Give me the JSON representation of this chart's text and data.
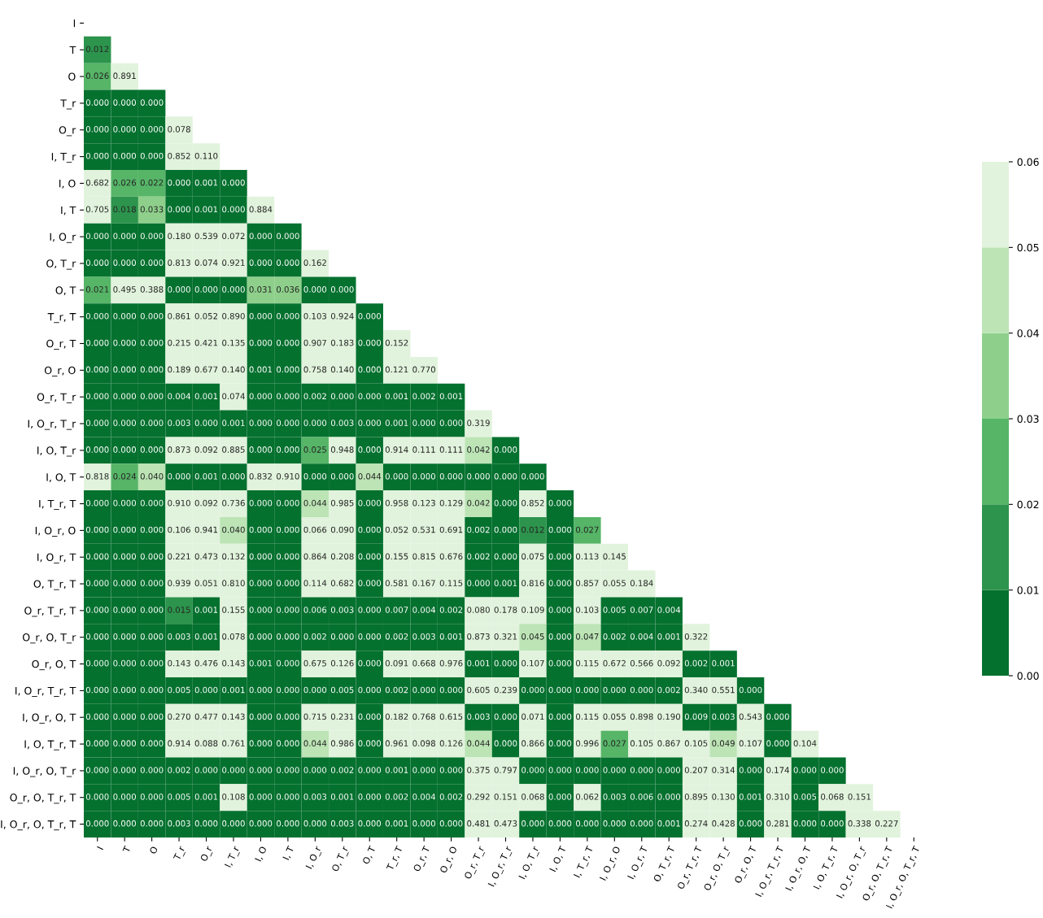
{
  "chart_data": {
    "type": "heatmap",
    "categories": [
      "I",
      "T",
      "O",
      "T_r",
      "O_r",
      "I, T_r",
      "I, O",
      "I, T",
      "I, O_r",
      "O, T_r",
      "O, T",
      "T_r, T",
      "O_r, T",
      "O_r, O",
      "O_r, T_r",
      "I, O_r, T_r",
      "I, O, T_r",
      "I, O, T",
      "I, T_r, T",
      "I, O_r, O",
      "I, O_r, T",
      "O, T_r, T",
      "O_r, T_r, T",
      "O_r, O, T_r",
      "O_r, O, T",
      "I, O_r, T_r, T",
      "I, O_r, O, T",
      "I, O, T_r, T",
      "I, O_r, O, T_r",
      "O_r, O, T_r, T",
      "I, O_r, O, T_r, T"
    ],
    "y_categories": [
      "I",
      "T",
      "O",
      "T_r",
      "O_r",
      "I, T_r",
      "I, O",
      "I, T",
      "I, O_r",
      "O, T_r",
      "O, T",
      "T_r, T",
      "O_r, T",
      "O_r, O",
      "O_r, T_r",
      "I, O_r, T_r",
      "I, O, T_r",
      "I, O, T",
      "I, T_r, T",
      "I, O_r, O",
      "I, O_r, T",
      "O, T_r, T",
      "O_r, T_r, T",
      "O_r, O, T_r",
      "O_r, O, T",
      "I, O_r, T_r, T",
      "I, O_r, O, T",
      "I, O, T_r, T",
      "I, O_r, O, T_r",
      "O_r, O, T_r, T",
      "I, O_r, O, T_r, T"
    ],
    "cells": [
      [
        null,
        null,
        null,
        null,
        null,
        null,
        null,
        null,
        null,
        null,
        null,
        null,
        null,
        null,
        null,
        null,
        null,
        null,
        null,
        null,
        null,
        null,
        null,
        null,
        null,
        null,
        null,
        null,
        null,
        null,
        null
      ],
      [
        0.012,
        null,
        null,
        null,
        null,
        null,
        null,
        null,
        null,
        null,
        null,
        null,
        null,
        null,
        null,
        null,
        null,
        null,
        null,
        null,
        null,
        null,
        null,
        null,
        null,
        null,
        null,
        null,
        null,
        null,
        null
      ],
      [
        0.026,
        0.891,
        null,
        null,
        null,
        null,
        null,
        null,
        null,
        null,
        null,
        null,
        null,
        null,
        null,
        null,
        null,
        null,
        null,
        null,
        null,
        null,
        null,
        null,
        null,
        null,
        null,
        null,
        null,
        null,
        null
      ],
      [
        0.0,
        0.0,
        0.0,
        null,
        null,
        null,
        null,
        null,
        null,
        null,
        null,
        null,
        null,
        null,
        null,
        null,
        null,
        null,
        null,
        null,
        null,
        null,
        null,
        null,
        null,
        null,
        null,
        null,
        null,
        null,
        null
      ],
      [
        0.0,
        0.0,
        0.0,
        0.078,
        null,
        null,
        null,
        null,
        null,
        null,
        null,
        null,
        null,
        null,
        null,
        null,
        null,
        null,
        null,
        null,
        null,
        null,
        null,
        null,
        null,
        null,
        null,
        null,
        null,
        null,
        null
      ],
      [
        0.0,
        0.0,
        0.0,
        0.852,
        0.11,
        null,
        null,
        null,
        null,
        null,
        null,
        null,
        null,
        null,
        null,
        null,
        null,
        null,
        null,
        null,
        null,
        null,
        null,
        null,
        null,
        null,
        null,
        null,
        null,
        null,
        null
      ],
      [
        0.682,
        0.026,
        0.022,
        0.0,
        0.001,
        0.0,
        null,
        null,
        null,
        null,
        null,
        null,
        null,
        null,
        null,
        null,
        null,
        null,
        null,
        null,
        null,
        null,
        null,
        null,
        null,
        null,
        null,
        null,
        null,
        null,
        null
      ],
      [
        0.705,
        0.018,
        0.033,
        0.0,
        0.001,
        0.0,
        0.884,
        null,
        null,
        null,
        null,
        null,
        null,
        null,
        null,
        null,
        null,
        null,
        null,
        null,
        null,
        null,
        null,
        null,
        null,
        null,
        null,
        null,
        null,
        null,
        null
      ],
      [
        0.0,
        0.0,
        0.0,
        0.18,
        0.539,
        0.072,
        0.0,
        0.0,
        null,
        null,
        null,
        null,
        null,
        null,
        null,
        null,
        null,
        null,
        null,
        null,
        null,
        null,
        null,
        null,
        null,
        null,
        null,
        null,
        null,
        null,
        null
      ],
      [
        0.0,
        0.0,
        0.0,
        0.813,
        0.074,
        0.921,
        0.0,
        0.0,
        0.162,
        null,
        null,
        null,
        null,
        null,
        null,
        null,
        null,
        null,
        null,
        null,
        null,
        null,
        null,
        null,
        null,
        null,
        null,
        null,
        null,
        null,
        null
      ],
      [
        0.021,
        0.495,
        0.388,
        0.0,
        0.0,
        0.0,
        0.031,
        0.036,
        0.0,
        0.0,
        null,
        null,
        null,
        null,
        null,
        null,
        null,
        null,
        null,
        null,
        null,
        null,
        null,
        null,
        null,
        null,
        null,
        null,
        null,
        null,
        null
      ],
      [
        0.0,
        0.0,
        0.0,
        0.861,
        0.052,
        0.89,
        0.0,
        0.0,
        0.103,
        0.924,
        0.0,
        null,
        null,
        null,
        null,
        null,
        null,
        null,
        null,
        null,
        null,
        null,
        null,
        null,
        null,
        null,
        null,
        null,
        null,
        null,
        null
      ],
      [
        0.0,
        0.0,
        0.0,
        0.215,
        0.421,
        0.135,
        0.0,
        0.0,
        0.907,
        0.183,
        0.0,
        0.152,
        null,
        null,
        null,
        null,
        null,
        null,
        null,
        null,
        null,
        null,
        null,
        null,
        null,
        null,
        null,
        null,
        null,
        null,
        null
      ],
      [
        0.0,
        0.0,
        0.0,
        0.189,
        0.677,
        0.14,
        0.001,
        0.0,
        0.758,
        0.14,
        0.0,
        0.121,
        0.77,
        null,
        null,
        null,
        null,
        null,
        null,
        null,
        null,
        null,
        null,
        null,
        null,
        null,
        null,
        null,
        null,
        null,
        null
      ],
      [
        0.0,
        0.0,
        0.0,
        0.004,
        0.001,
        0.074,
        0.0,
        0.0,
        0.002,
        0.0,
        0.0,
        0.001,
        0.002,
        0.001,
        null,
        null,
        null,
        null,
        null,
        null,
        null,
        null,
        null,
        null,
        null,
        null,
        null,
        null,
        null,
        null,
        null
      ],
      [
        0.0,
        0.0,
        0.0,
        0.003,
        0.0,
        0.001,
        0.0,
        0.0,
        0.0,
        0.003,
        0.0,
        0.001,
        0.0,
        0.0,
        0.319,
        null,
        null,
        null,
        null,
        null,
        null,
        null,
        null,
        null,
        null,
        null,
        null,
        null,
        null,
        null,
        null
      ],
      [
        0.0,
        0.0,
        0.0,
        0.873,
        0.092,
        0.885,
        0.0,
        0.0,
        0.025,
        0.948,
        0.0,
        0.914,
        0.111,
        0.111,
        0.042,
        0.0,
        null,
        null,
        null,
        null,
        null,
        null,
        null,
        null,
        null,
        null,
        null,
        null,
        null,
        null,
        null
      ],
      [
        0.818,
        0.024,
        0.04,
        0.0,
        0.001,
        0.0,
        0.832,
        0.91,
        0.0,
        0.0,
        0.044,
        0.0,
        0.0,
        0.0,
        0.0,
        0.0,
        0.0,
        null,
        null,
        null,
        null,
        null,
        null,
        null,
        null,
        null,
        null,
        null,
        null,
        null,
        null
      ],
      [
        0.0,
        0.0,
        0.0,
        0.91,
        0.092,
        0.736,
        0.0,
        0.0,
        0.044,
        0.985,
        0.0,
        0.958,
        0.123,
        0.129,
        0.042,
        0.0,
        0.852,
        0.0,
        null,
        null,
        null,
        null,
        null,
        null,
        null,
        null,
        null,
        null,
        null,
        null,
        null
      ],
      [
        0.0,
        0.0,
        0.0,
        0.106,
        0.941,
        0.04,
        0.0,
        0.0,
        0.066,
        0.09,
        0.0,
        0.052,
        0.531,
        0.691,
        0.002,
        0.0,
        0.012,
        0.0,
        0.027,
        null,
        null,
        null,
        null,
        null,
        null,
        null,
        null,
        null,
        null,
        null,
        null
      ],
      [
        0.0,
        0.0,
        0.0,
        0.221,
        0.473,
        0.132,
        0.0,
        0.0,
        0.864,
        0.208,
        0.0,
        0.155,
        0.815,
        0.676,
        0.002,
        0.0,
        0.075,
        0.0,
        0.113,
        0.145,
        null,
        null,
        null,
        null,
        null,
        null,
        null,
        null,
        null,
        null,
        null
      ],
      [
        0.0,
        0.0,
        0.0,
        0.939,
        0.051,
        0.81,
        0.0,
        0.0,
        0.114,
        0.682,
        0.0,
        0.581,
        0.167,
        0.115,
        0.0,
        0.001,
        0.816,
        0.0,
        0.857,
        0.055,
        0.184,
        null,
        null,
        null,
        null,
        null,
        null,
        null,
        null,
        null,
        null
      ],
      [
        0.0,
        0.0,
        0.0,
        0.015,
        0.001,
        0.155,
        0.0,
        0.0,
        0.006,
        0.003,
        0.0,
        0.007,
        0.004,
        0.002,
        0.08,
        0.178,
        0.109,
        0.0,
        0.103,
        0.005,
        0.007,
        0.004,
        null,
        null,
        null,
        null,
        null,
        null,
        null,
        null,
        null
      ],
      [
        0.0,
        0.0,
        0.0,
        0.003,
        0.001,
        0.078,
        0.0,
        0.0,
        0.002,
        0.0,
        0.0,
        0.002,
        0.003,
        0.001,
        0.873,
        0.321,
        0.045,
        0.0,
        0.047,
        0.002,
        0.004,
        0.001,
        0.322,
        null,
        null,
        null,
        null,
        null,
        null,
        null,
        null
      ],
      [
        0.0,
        0.0,
        0.0,
        0.143,
        0.476,
        0.143,
        0.001,
        0.0,
        0.675,
        0.126,
        0.0,
        0.091,
        0.668,
        0.976,
        0.001,
        0.0,
        0.107,
        0.0,
        0.115,
        0.672,
        0.566,
        0.092,
        0.002,
        0.001,
        null,
        null,
        null,
        null,
        null,
        null,
        null
      ],
      [
        0.0,
        0.0,
        0.0,
        0.005,
        0.0,
        0.001,
        0.0,
        0.0,
        0.0,
        0.005,
        0.0,
        0.002,
        0.0,
        0.0,
        0.605,
        0.239,
        0.0,
        0.0,
        0.0,
        0.0,
        0.0,
        0.002,
        0.34,
        0.551,
        0.0,
        null,
        null,
        null,
        null,
        null,
        null
      ],
      [
        0.0,
        0.0,
        0.0,
        0.27,
        0.477,
        0.143,
        0.0,
        0.0,
        0.715,
        0.231,
        0.0,
        0.182,
        0.768,
        0.615,
        0.003,
        0.0,
        0.071,
        0.0,
        0.115,
        0.055,
        0.898,
        0.19,
        0.009,
        0.003,
        0.543,
        0.0,
        null,
        null,
        null,
        null,
        null
      ],
      [
        0.0,
        0.0,
        0.0,
        0.914,
        0.088,
        0.761,
        0.0,
        0.0,
        0.044,
        0.986,
        0.0,
        0.961,
        0.098,
        0.126,
        0.044,
        0.0,
        0.866,
        0.0,
        0.996,
        0.027,
        0.105,
        0.867,
        0.105,
        0.049,
        0.107,
        0.0,
        0.104,
        null,
        null,
        null,
        null
      ],
      [
        0.0,
        0.0,
        0.0,
        0.002,
        0.0,
        0.0,
        0.0,
        0.0,
        0.0,
        0.002,
        0.0,
        0.001,
        0.0,
        0.0,
        0.375,
        0.797,
        0.0,
        0.0,
        0.0,
        0.0,
        0.0,
        0.0,
        0.207,
        0.314,
        0.0,
        0.174,
        0.0,
        0.0,
        null,
        null,
        null
      ],
      [
        0.0,
        0.0,
        0.0,
        0.005,
        0.001,
        0.108,
        0.0,
        0.0,
        0.003,
        0.001,
        0.0,
        0.002,
        0.004,
        0.002,
        0.292,
        0.151,
        0.068,
        0.0,
        0.062,
        0.003,
        0.006,
        0.0,
        0.895,
        0.13,
        0.001,
        0.31,
        0.005,
        0.068,
        0.151,
        null,
        null
      ],
      [
        0.0,
        0.0,
        0.0,
        0.003,
        0.0,
        0.0,
        0.0,
        0.0,
        0.0,
        0.003,
        0.0,
        0.001,
        0.0,
        0.0,
        0.481,
        0.473,
        0.0,
        0.0,
        0.0,
        0.0,
        0.0,
        0.001,
        0.274,
        0.428,
        0.0,
        0.281,
        0.0,
        0.0,
        0.338,
        0.227,
        null
      ]
    ],
    "cell_labels": [
      [
        null,
        null,
        null,
        null,
        null,
        null,
        null,
        null,
        null,
        null,
        null,
        null,
        null,
        null,
        null,
        null,
        null,
        null,
        null,
        null,
        null,
        null,
        null,
        null,
        null,
        null,
        null,
        null,
        null,
        null,
        null
      ],
      [
        "0.012",
        null,
        null,
        null,
        null,
        null,
        null,
        null,
        null,
        null,
        null,
        null,
        null,
        null,
        null,
        null,
        null,
        null,
        null,
        null,
        null,
        null,
        null,
        null,
        null,
        null,
        null,
        null,
        null,
        null,
        null
      ],
      [
        "0.026",
        "0.891",
        null,
        null,
        null,
        null,
        null,
        null,
        null,
        null,
        null,
        null,
        null,
        null,
        null,
        null,
        null,
        null,
        null,
        null,
        null,
        null,
        null,
        null,
        null,
        null,
        null,
        null,
        null,
        null,
        null
      ],
      [
        "0.000",
        "0.000",
        "0.000",
        null,
        null,
        null,
        null,
        null,
        null,
        null,
        null,
        null,
        null,
        null,
        null,
        null,
        null,
        null,
        null,
        null,
        null,
        null,
        null,
        null,
        null,
        null,
        null,
        null,
        null,
        null,
        null
      ],
      [
        "0.000",
        "0.000",
        "0.000",
        "0.078",
        null,
        null,
        null,
        null,
        null,
        null,
        null,
        null,
        null,
        null,
        null,
        null,
        null,
        null,
        null,
        null,
        null,
        null,
        null,
        null,
        null,
        null,
        null,
        null,
        null,
        null,
        null
      ],
      [
        "0.000",
        "0.000",
        "0.000",
        "0.852",
        "0.110",
        null,
        null,
        null,
        null,
        null,
        null,
        null,
        null,
        null,
        null,
        null,
        null,
        null,
        null,
        null,
        null,
        null,
        null,
        null,
        null,
        null,
        null,
        null,
        null,
        null,
        null
      ],
      [
        "0.682",
        "0.026",
        "0.022",
        "0.000",
        "0.001",
        "0.000",
        null,
        null,
        null,
        null,
        null,
        null,
        null,
        null,
        null,
        null,
        null,
        null,
        null,
        null,
        null,
        null,
        null,
        null,
        null,
        null,
        null,
        null,
        null,
        null,
        null
      ],
      [
        "0.705",
        "0.018",
        "0.033",
        "0.000",
        "0.001",
        "0.000",
        "0.884",
        null,
        null,
        null,
        null,
        null,
        null,
        null,
        null,
        null,
        null,
        null,
        null,
        null,
        null,
        null,
        null,
        null,
        null,
        null,
        null,
        null,
        null,
        null,
        null
      ],
      [
        "0.000",
        "0.000",
        "0.000",
        "0.180",
        "0.539",
        "0.072",
        "0.000",
        "0.000",
        null,
        null,
        null,
        null,
        null,
        null,
        null,
        null,
        null,
        null,
        null,
        null,
        null,
        null,
        null,
        null,
        null,
        null,
        null,
        null,
        null,
        null,
        null
      ],
      [
        "0.000",
        "0.000",
        "0.000",
        "0.813",
        "0.074",
        "0.921",
        "0.000",
        "0.000",
        "0.162",
        null,
        null,
        null,
        null,
        null,
        null,
        null,
        null,
        null,
        null,
        null,
        null,
        null,
        null,
        null,
        null,
        null,
        null,
        null,
        null,
        null,
        null
      ],
      [
        "0.021",
        "0.495",
        "0.388",
        "0.000",
        "0.000",
        "0.000",
        "0.031",
        "0.036",
        "0.000",
        "0.000",
        null,
        null,
        null,
        null,
        null,
        null,
        null,
        null,
        null,
        null,
        null,
        null,
        null,
        null,
        null,
        null,
        null,
        null,
        null,
        null,
        null
      ],
      [
        "0.000",
        "0.000",
        "0.000",
        "0.861",
        "0.052",
        "0.890",
        "0.000",
        "0.000",
        "0.103",
        "0.924",
        "0.000",
        null,
        null,
        null,
        null,
        null,
        null,
        null,
        null,
        null,
        null,
        null,
        null,
        null,
        null,
        null,
        null,
        null,
        null,
        null,
        null
      ],
      [
        "0.000",
        "0.000",
        "0.000",
        "0.215",
        "0.421",
        "0.135",
        "0.000",
        "0.000",
        "0.907",
        "0.183",
        "0.000",
        "0.152",
        null,
        null,
        null,
        null,
        null,
        null,
        null,
        null,
        null,
        null,
        null,
        null,
        null,
        null,
        null,
        null,
        null,
        null,
        null
      ],
      [
        "0.000",
        "0.000",
        "0.000",
        "0.189",
        "0.677",
        "0.140",
        "0.001",
        "0.000",
        "0.758",
        "0.140",
        "0.000",
        "0.121",
        "0.770",
        null,
        null,
        null,
        null,
        null,
        null,
        null,
        null,
        null,
        null,
        null,
        null,
        null,
        null,
        null,
        null,
        null,
        null
      ],
      [
        "0.000",
        "0.000",
        "0.000",
        "0.004",
        "0.001",
        "0.074",
        "0.000",
        "0.000",
        "0.002",
        "0.000",
        "0.000",
        "0.001",
        "0.002",
        "0.001",
        null,
        null,
        null,
        null,
        null,
        null,
        null,
        null,
        null,
        null,
        null,
        null,
        null,
        null,
        null,
        null,
        null
      ],
      [
        "0.000",
        "0.000",
        "0.000",
        "0.003",
        "0.000",
        "0.001",
        "0.000",
        "0.000",
        "0.000",
        "0.003",
        "0.000",
        "0.001",
        "0.000",
        "0.000",
        "0.319",
        null,
        null,
        null,
        null,
        null,
        null,
        null,
        null,
        null,
        null,
        null,
        null,
        null,
        null,
        null,
        null
      ],
      [
        "0.000",
        "0.000",
        "0.000",
        "0.873",
        "0.092",
        "0.885",
        "0.000",
        "0.000",
        "0.025",
        "0.948",
        "0.000",
        "0.914",
        "0.111",
        "0.111",
        "0.042",
        "0.000",
        null,
        null,
        null,
        null,
        null,
        null,
        null,
        null,
        null,
        null,
        null,
        null,
        null,
        null,
        null
      ],
      [
        "0.818",
        "0.024",
        "0.040",
        "0.000",
        "0.001",
        "0.000",
        "0.832",
        "0.910",
        "0.000",
        "0.000",
        "0.044",
        "0.000",
        "0.000",
        "0.000",
        "0.000",
        "0.000",
        "0.000",
        null,
        null,
        null,
        null,
        null,
        null,
        null,
        null,
        null,
        null,
        null,
        null,
        null,
        null
      ],
      [
        "0.000",
        "0.000",
        "0.000",
        "0.910",
        "0.092",
        "0.736",
        "0.000",
        "0.000",
        "0.044",
        "0.985",
        "0.000",
        "0.958",
        "0.123",
        "0.129",
        "0.042",
        "0.000",
        "0.852",
        "0.000",
        null,
        null,
        null,
        null,
        null,
        null,
        null,
        null,
        null,
        null,
        null,
        null,
        null
      ],
      [
        "0.000",
        "0.000",
        "0.000",
        "0.106",
        "0.941",
        "0.040",
        "0.000",
        "0.000",
        "0.066",
        "0.090",
        "0.000",
        "0.052",
        "0.531",
        "0.691",
        "0.002",
        "0.000",
        "0.012",
        "0.000",
        "0.027",
        null,
        null,
        null,
        null,
        null,
        null,
        null,
        null,
        null,
        null,
        null,
        null
      ],
      [
        "0.000",
        "0.000",
        "0.000",
        "0.221",
        "0.473",
        "0.132",
        "0.000",
        "0.000",
        "0.864",
        "0.208",
        "0.000",
        "0.155",
        "0.815",
        "0.676",
        "0.002",
        "0.000",
        "0.075",
        "0.000",
        "0.113",
        "0.145",
        null,
        null,
        null,
        null,
        null,
        null,
        null,
        null,
        null,
        null,
        null
      ],
      [
        "0.000",
        "0.000",
        "0.000",
        "0.939",
        "0.051",
        "0.810",
        "0.000",
        "0.000",
        "0.114",
        "0.682",
        "0.000",
        "0.581",
        "0.167",
        "0.115",
        "0.000",
        "0.001",
        "0.816",
        "0.000",
        "0.857",
        "0.055",
        "0.184",
        null,
        null,
        null,
        null,
        null,
        null,
        null,
        null,
        null,
        null
      ],
      [
        "0.000",
        "0.000",
        "0.000",
        "0.015",
        "0.001",
        "0.155",
        "0.000",
        "0.000",
        "0.006",
        "0.003",
        "0.000",
        "0.007",
        "0.004",
        "0.002",
        "0.080",
        "0.178",
        "0.109",
        "0.000",
        "0.103",
        "0.005",
        "0.007",
        "0.004",
        null,
        null,
        null,
        null,
        null,
        null,
        null,
        null,
        null
      ],
      [
        "0.000",
        "0.000",
        "0.000",
        "0.003",
        "0.001",
        "0.078",
        "0.000",
        "0.000",
        "0.002",
        "0.000",
        "0.000",
        "0.002",
        "0.003",
        "0.001",
        "0.873",
        "0.321",
        "0.045",
        "0.000",
        "0.047",
        "0.002",
        "0.004",
        "0.001",
        "0.322",
        null,
        null,
        null,
        null,
        null,
        null,
        null,
        null
      ],
      [
        "0.000",
        "0.000",
        "0.000",
        "0.143",
        "0.476",
        "0.143",
        "0.001",
        "0.000",
        "0.675",
        "0.126",
        "0.000",
        "0.091",
        "0.668",
        "0.976",
        "0.001",
        "0.000",
        "0.107",
        "0.000",
        "0.115",
        "0.672",
        "0.566",
        "0.092",
        "0.002",
        "0.001",
        null,
        null,
        null,
        null,
        null,
        null,
        null
      ],
      [
        "0.000",
        "0.000",
        "0.000",
        "0.005",
        "0.000",
        "0.001",
        "0.000",
        "0.000",
        "0.000",
        "0.005",
        "0.000",
        "0.002",
        "0.000",
        "0.000",
        "0.605",
        "0.239",
        "0.000",
        "0.000",
        "0.000",
        "0.000",
        "0.000",
        "0.002",
        "0.340",
        "0.551",
        "0.000",
        null,
        null,
        null,
        null,
        null,
        null
      ],
      [
        "0.000",
        "0.000",
        "0.000",
        "0.270",
        "0.477",
        "0.143",
        "0.000",
        "0.000",
        "0.715",
        "0.231",
        "0.000",
        "0.182",
        "0.768",
        "0.615",
        "0.003",
        "0.000",
        "0.071",
        "0.000",
        "0.115",
        "0.055",
        "0.898",
        "0.190",
        "0.009",
        "0.003",
        "0.543",
        "0.000",
        null,
        null,
        null,
        null,
        null
      ],
      [
        "0.000",
        "0.000",
        "0.000",
        "0.914",
        "0.088",
        "0.761",
        "0.000",
        "0.000",
        "0.044",
        "0.986",
        "0.000",
        "0.961",
        "0.098",
        "0.126",
        "0.044",
        "0.000",
        "0.866",
        "0.000",
        "0.996",
        "0.027",
        "0.105",
        "0.867",
        "0.105",
        "0.049",
        "0.107",
        "0.000",
        "0.104",
        null,
        null,
        null,
        null
      ],
      [
        "0.000",
        "0.000",
        "0.000",
        "0.002",
        "0.000",
        "0.000",
        "0.000",
        "0.000",
        "0.000",
        "0.002",
        "0.000",
        "0.001",
        "0.000",
        "0.000",
        "0.375",
        "0.797",
        "0.000",
        "0.000",
        "0.000",
        "0.000",
        "0.000",
        "0.000",
        "0.207",
        "0.314",
        "0.000",
        "0.174",
        "0.000",
        "0.000",
        null,
        null,
        null
      ],
      [
        "0.000",
        "0.000",
        "0.000",
        "0.005",
        "0.001",
        "0.108",
        "0.000",
        "0.000",
        "0.003",
        "0.001",
        "0.000",
        "0.002",
        "0.004",
        "0.002",
        "0.292",
        "0.151",
        "0.068",
        "0.000",
        "0.062",
        "0.003",
        "0.006",
        "0.000",
        "0.895",
        "0.130",
        "0.001",
        "0.310",
        "0.005",
        "0.068",
        "0.151",
        null,
        null
      ],
      [
        "0.000",
        "0.000",
        "0.000",
        "0.003",
        "0.000",
        "0.000",
        "0.000",
        "0.000",
        "0.000",
        "0.003",
        "0.000",
        "0.001",
        "0.000",
        "0.000",
        "0.481",
        "0.473",
        "0.000",
        "0.000",
        "0.000",
        "0.000",
        "0.000",
        "0.001",
        "0.274",
        "0.428",
        "0.000",
        "0.281",
        "0.000",
        "0.000",
        "0.338",
        "0.227",
        null
      ]
    ],
    "clim": [
      0.0,
      0.06
    ],
    "cticks": [
      {
        "value": 0.0,
        "label": "0.00"
      },
      {
        "value": 0.01,
        "label": "0.01"
      },
      {
        "value": 0.02,
        "label": "0.02"
      },
      {
        "value": 0.03,
        "label": "0.03"
      },
      {
        "value": 0.04,
        "label": "0.04"
      },
      {
        "value": 0.05,
        "label": "0.05"
      },
      {
        "value": 0.06,
        "label": "0.06"
      }
    ]
  }
}
